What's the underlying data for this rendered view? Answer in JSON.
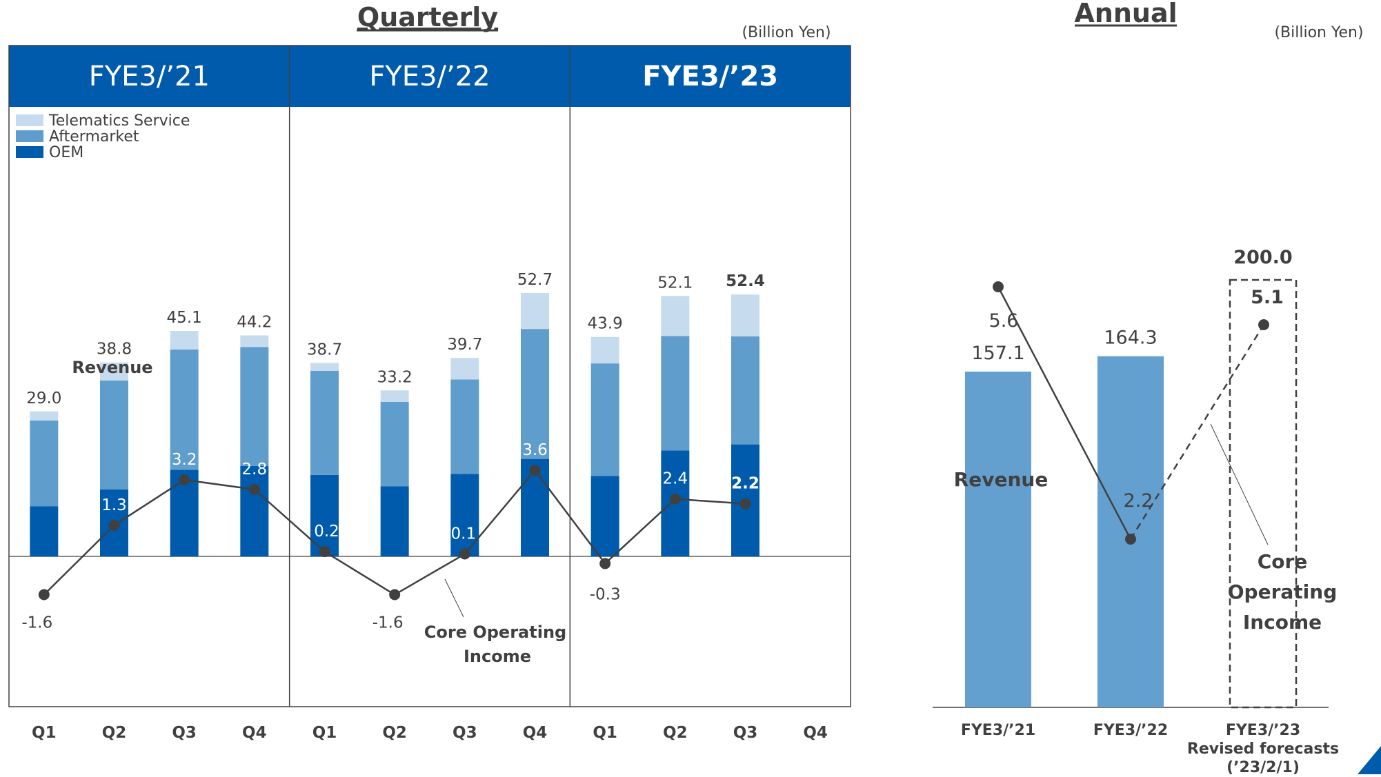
{
  "quarterly_title": "Quarterly",
  "annual_title": "Annual",
  "unit_quarterly": "(Billion Yen)",
  "unit_annual": "(Billion Yen)",
  "colors": {
    "header": "#005bac",
    "oem": "#005bac",
    "aftermarket": "#5f9dcc",
    "telematics": "#c6dcee",
    "annual_bar": "#63a0cf",
    "line": "#404040"
  },
  "chart_data": [
    {
      "type": "bar",
      "stacked": true,
      "title": "Quarterly",
      "unit": "(Billion Yen)",
      "fiscal_years": [
        "FYE3/’21",
        "FYE3/’22",
        "FYE3/’23"
      ],
      "categories": [
        "Q1",
        "Q2",
        "Q3",
        "Q4",
        "Q1",
        "Q2",
        "Q3",
        "Q4",
        "Q1",
        "Q2",
        "Q3",
        "Q4"
      ],
      "legend": [
        "Telematics Service",
        "Aftermarket",
        "OEM"
      ],
      "legend_position": "top-left",
      "series": [
        {
          "name": "OEM",
          "values": [
            10,
            13.4,
            17.3,
            18.1,
            16.3,
            14,
            16.5,
            19.5,
            16.1,
            21.2,
            22.4,
            null
          ]
        },
        {
          "name": "Aftermarket",
          "values": [
            17.2,
            21.8,
            24.1,
            23.8,
            20.8,
            16.9,
            18.9,
            26,
            22.5,
            22.9,
            21.6,
            null
          ]
        },
        {
          "name": "Telematics Service",
          "values": [
            1.8,
            3.6,
            3.7,
            2.3,
            1.6,
            2.3,
            4.3,
            7.2,
            5.3,
            8,
            8.4,
            null
          ]
        }
      ],
      "revenue_labels": [
        "29.0",
        "38.8",
        "45.1",
        "44.2",
        "38.7",
        "33.2",
        "39.7",
        "52.7",
        "43.9",
        "52.1",
        "52.4",
        ""
      ],
      "revenue": [
        29.0,
        38.8,
        45.1,
        44.2,
        38.7,
        33.2,
        39.7,
        52.7,
        43.9,
        52.1,
        52.4,
        null
      ],
      "revenue_annotation": "Revenue",
      "core_operating_income": [
        -1.6,
        1.3,
        3.2,
        2.8,
        0.2,
        -1.6,
        0.1,
        3.6,
        -0.3,
        2.4,
        2.2,
        null
      ],
      "coi_labels": [
        "-1.6",
        "1.3",
        "3.2",
        "2.8",
        "0.2",
        "-1.6",
        "0.1",
        "3.6",
        "-0.3",
        "2.4",
        "2.2",
        ""
      ],
      "coi_annotation": [
        "Core  Operating",
        "Income"
      ]
    },
    {
      "type": "bar",
      "title": "Annual",
      "unit": "(Billion Yen)",
      "categories": [
        "FYE3/’21",
        "FYE3/’22",
        "FYE3/’23"
      ],
      "category_notes": [
        "",
        "",
        "Revised forecasts\n(’23/2/1)"
      ],
      "revenue": [
        157.1,
        164.3,
        200.0
      ],
      "revenue_labels": [
        "157.1",
        "164.3",
        "200.0"
      ],
      "forecast": [
        false,
        false,
        true
      ],
      "revenue_annotation": "Revenue",
      "core_operating_income": [
        5.6,
        2.2,
        5.1
      ],
      "coi_labels": [
        "5.6",
        "2.2",
        "5.1"
      ],
      "coi_annotation": [
        "Core",
        "Operating",
        "Income"
      ]
    }
  ]
}
